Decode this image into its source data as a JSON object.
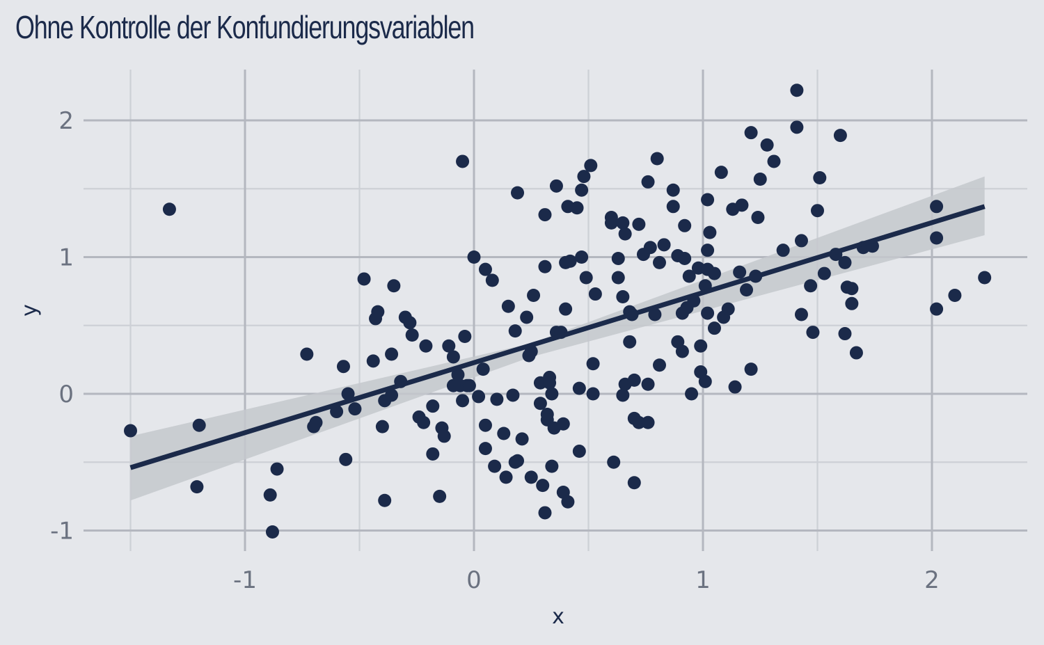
{
  "chart_data": {
    "type": "scatter",
    "title": "Ohne Kontrolle der Konfundierungsvariablen",
    "xlabel": "x",
    "ylabel": "y",
    "xlim": [
      -1.5,
      2.4
    ],
    "ylim": [
      -1.15,
      2.35
    ],
    "x_ticks": [
      -1,
      0,
      1,
      2
    ],
    "y_ticks": [
      -1,
      0,
      1,
      2
    ],
    "x_tick_labels": [
      "-1",
      "0",
      "1",
      "2"
    ],
    "y_tick_labels": [
      "-1",
      "0",
      "1",
      "2"
    ],
    "grid": true,
    "legend": "none",
    "colors": {
      "background": "#e5e7eb",
      "grid_major": "#b4b7bf",
      "grid_minor": "#cdd0d6",
      "points": "#1b2a4a",
      "fit_line": "#1b2a4a",
      "ribbon": "#c4c8cd"
    },
    "regression": {
      "method": "linear",
      "x": [
        -1.5,
        2.23
      ],
      "y": [
        -0.54,
        1.37
      ],
      "ribbon": [
        {
          "x": -1.5,
          "lo": -0.78,
          "hi": -0.31
        },
        {
          "x": 0.25,
          "lo": 0.27,
          "hi": 0.37
        },
        {
          "x": 2.23,
          "lo": 1.16,
          "hi": 1.59
        }
      ]
    },
    "points": [
      [
        -1.5,
        -0.27
      ],
      [
        -1.33,
        1.35
      ],
      [
        -1.21,
        -0.68
      ],
      [
        -1.2,
        -0.23
      ],
      [
        -0.89,
        -0.74
      ],
      [
        -0.88,
        -1.01
      ],
      [
        -0.86,
        -0.55
      ],
      [
        -0.73,
        0.29
      ],
      [
        -0.7,
        -0.24
      ],
      [
        -0.69,
        -0.21
      ],
      [
        -0.6,
        -0.13
      ],
      [
        -0.57,
        0.2
      ],
      [
        -0.56,
        -0.48
      ],
      [
        -0.55,
        0.0
      ],
      [
        -0.52,
        -0.11
      ],
      [
        -0.48,
        0.84
      ],
      [
        -0.44,
        0.24
      ],
      [
        -0.43,
        0.55
      ],
      [
        -0.42,
        0.6
      ],
      [
        -0.4,
        -0.24
      ],
      [
        -0.39,
        -0.78
      ],
      [
        -0.39,
        -0.05
      ],
      [
        -0.36,
        0.29
      ],
      [
        -0.36,
        -0.01
      ],
      [
        -0.35,
        0.79
      ],
      [
        -0.32,
        0.09
      ],
      [
        -0.3,
        0.56
      ],
      [
        -0.28,
        0.52
      ],
      [
        -0.27,
        0.43
      ],
      [
        -0.24,
        -0.17
      ],
      [
        -0.22,
        -0.21
      ],
      [
        -0.21,
        0.35
      ],
      [
        -0.18,
        -0.09
      ],
      [
        -0.18,
        -0.44
      ],
      [
        -0.15,
        -0.75
      ],
      [
        -0.14,
        -0.25
      ],
      [
        -0.13,
        -0.31
      ],
      [
        -0.11,
        0.35
      ],
      [
        -0.09,
        0.27
      ],
      [
        -0.09,
        0.06
      ],
      [
        -0.07,
        0.14
      ],
      [
        -0.06,
        0.06
      ],
      [
        -0.05,
        1.7
      ],
      [
        -0.05,
        -0.05
      ],
      [
        -0.04,
        0.42
      ],
      [
        -0.03,
        0.06
      ],
      [
        -0.02,
        0.06
      ],
      [
        0.0,
        1.0
      ],
      [
        0.02,
        -0.02
      ],
      [
        0.04,
        0.18
      ],
      [
        0.05,
        -0.23
      ],
      [
        0.05,
        -0.4
      ],
      [
        0.05,
        0.91
      ],
      [
        0.08,
        0.83
      ],
      [
        0.09,
        -0.53
      ],
      [
        0.1,
        -0.04
      ],
      [
        0.13,
        -0.29
      ],
      [
        0.14,
        -0.61
      ],
      [
        0.15,
        0.64
      ],
      [
        0.17,
        -0.01
      ],
      [
        0.18,
        -0.5
      ],
      [
        0.18,
        0.46
      ],
      [
        0.19,
        -0.49
      ],
      [
        0.19,
        1.47
      ],
      [
        0.21,
        -0.33
      ],
      [
        0.23,
        0.56
      ],
      [
        0.24,
        0.28
      ],
      [
        0.25,
        -0.61
      ],
      [
        0.25,
        0.31
      ],
      [
        0.26,
        0.72
      ],
      [
        0.29,
        0.08
      ],
      [
        0.29,
        -0.07
      ],
      [
        0.3,
        -0.67
      ],
      [
        0.31,
        1.31
      ],
      [
        0.31,
        -0.87
      ],
      [
        0.31,
        0.93
      ],
      [
        0.32,
        -0.15
      ],
      [
        0.32,
        -0.19
      ],
      [
        0.33,
        0.12
      ],
      [
        0.33,
        0.08
      ],
      [
        0.34,
        -0.53
      ],
      [
        0.34,
        0.0
      ],
      [
        0.35,
        -0.25
      ],
      [
        0.36,
        1.52
      ],
      [
        0.36,
        0.45
      ],
      [
        0.38,
        0.45
      ],
      [
        0.39,
        -0.22
      ],
      [
        0.39,
        -0.72
      ],
      [
        0.4,
        0.62
      ],
      [
        0.4,
        0.96
      ],
      [
        0.41,
        1.37
      ],
      [
        0.41,
        -0.79
      ],
      [
        0.42,
        0.97
      ],
      [
        0.45,
        1.36
      ],
      [
        0.46,
        0.04
      ],
      [
        0.46,
        -0.42
      ],
      [
        0.47,
        1.49
      ],
      [
        0.47,
        1.0
      ],
      [
        0.48,
        1.59
      ],
      [
        0.49,
        0.85
      ],
      [
        0.51,
        1.67
      ],
      [
        0.52,
        0.22
      ],
      [
        0.52,
        0.0
      ],
      [
        0.53,
        0.73
      ],
      [
        0.6,
        1.29
      ],
      [
        0.6,
        1.25
      ],
      [
        0.61,
        -0.5
      ],
      [
        0.63,
        0.99
      ],
      [
        0.63,
        0.85
      ],
      [
        0.65,
        -0.01
      ],
      [
        0.65,
        0.71
      ],
      [
        0.65,
        1.25
      ],
      [
        0.66,
        1.17
      ],
      [
        0.66,
        0.07
      ],
      [
        0.68,
        0.6
      ],
      [
        0.68,
        0.38
      ],
      [
        0.69,
        0.58
      ],
      [
        0.7,
        0.1
      ],
      [
        0.7,
        -0.65
      ],
      [
        0.7,
        -0.18
      ],
      [
        0.72,
        1.24
      ],
      [
        0.72,
        -0.21
      ],
      [
        0.74,
        1.02
      ],
      [
        0.76,
        0.07
      ],
      [
        0.76,
        1.55
      ],
      [
        0.76,
        -0.21
      ],
      [
        0.77,
        1.07
      ],
      [
        0.79,
        0.58
      ],
      [
        0.8,
        1.72
      ],
      [
        0.81,
        0.96
      ],
      [
        0.81,
        0.21
      ],
      [
        0.83,
        1.09
      ],
      [
        0.87,
        1.49
      ],
      [
        0.87,
        1.37
      ],
      [
        0.89,
        1.01
      ],
      [
        0.89,
        0.38
      ],
      [
        0.91,
        0.31
      ],
      [
        0.91,
        0.59
      ],
      [
        0.92,
        1.23
      ],
      [
        0.92,
        0.99
      ],
      [
        0.93,
        0.63
      ],
      [
        0.94,
        0.86
      ],
      [
        0.95,
        0.0
      ],
      [
        0.96,
        0.68
      ],
      [
        0.98,
        0.92
      ],
      [
        0.99,
        0.16
      ],
      [
        0.99,
        0.35
      ],
      [
        1.01,
        0.09
      ],
      [
        1.01,
        0.79
      ],
      [
        1.02,
        1.05
      ],
      [
        1.02,
        1.42
      ],
      [
        1.02,
        0.59
      ],
      [
        1.02,
        0.91
      ],
      [
        1.03,
        1.18
      ],
      [
        1.05,
        0.88
      ],
      [
        1.05,
        0.48
      ],
      [
        1.08,
        1.62
      ],
      [
        1.09,
        0.56
      ],
      [
        1.11,
        0.62
      ],
      [
        1.13,
        1.35
      ],
      [
        1.14,
        0.05
      ],
      [
        1.16,
        0.89
      ],
      [
        1.17,
        1.38
      ],
      [
        1.19,
        0.76
      ],
      [
        1.21,
        0.18
      ],
      [
        1.21,
        1.91
      ],
      [
        1.23,
        0.86
      ],
      [
        1.24,
        1.29
      ],
      [
        1.25,
        1.57
      ],
      [
        1.28,
        1.82
      ],
      [
        1.31,
        1.7
      ],
      [
        1.35,
        1.05
      ],
      [
        1.41,
        1.95
      ],
      [
        1.41,
        2.22
      ],
      [
        1.43,
        0.58
      ],
      [
        1.43,
        1.12
      ],
      [
        1.47,
        0.79
      ],
      [
        1.48,
        0.45
      ],
      [
        1.5,
        1.34
      ],
      [
        1.51,
        1.58
      ],
      [
        1.53,
        0.88
      ],
      [
        1.58,
        1.02
      ],
      [
        1.6,
        1.89
      ],
      [
        1.62,
        0.44
      ],
      [
        1.62,
        0.96
      ],
      [
        1.63,
        0.78
      ],
      [
        1.65,
        0.77
      ],
      [
        1.65,
        0.66
      ],
      [
        1.67,
        0.3
      ],
      [
        1.7,
        1.07
      ],
      [
        1.74,
        1.08
      ],
      [
        2.02,
        1.37
      ],
      [
        2.02,
        1.14
      ],
      [
        2.02,
        0.62
      ],
      [
        2.1,
        0.72
      ],
      [
        2.23,
        0.85
      ]
    ]
  }
}
